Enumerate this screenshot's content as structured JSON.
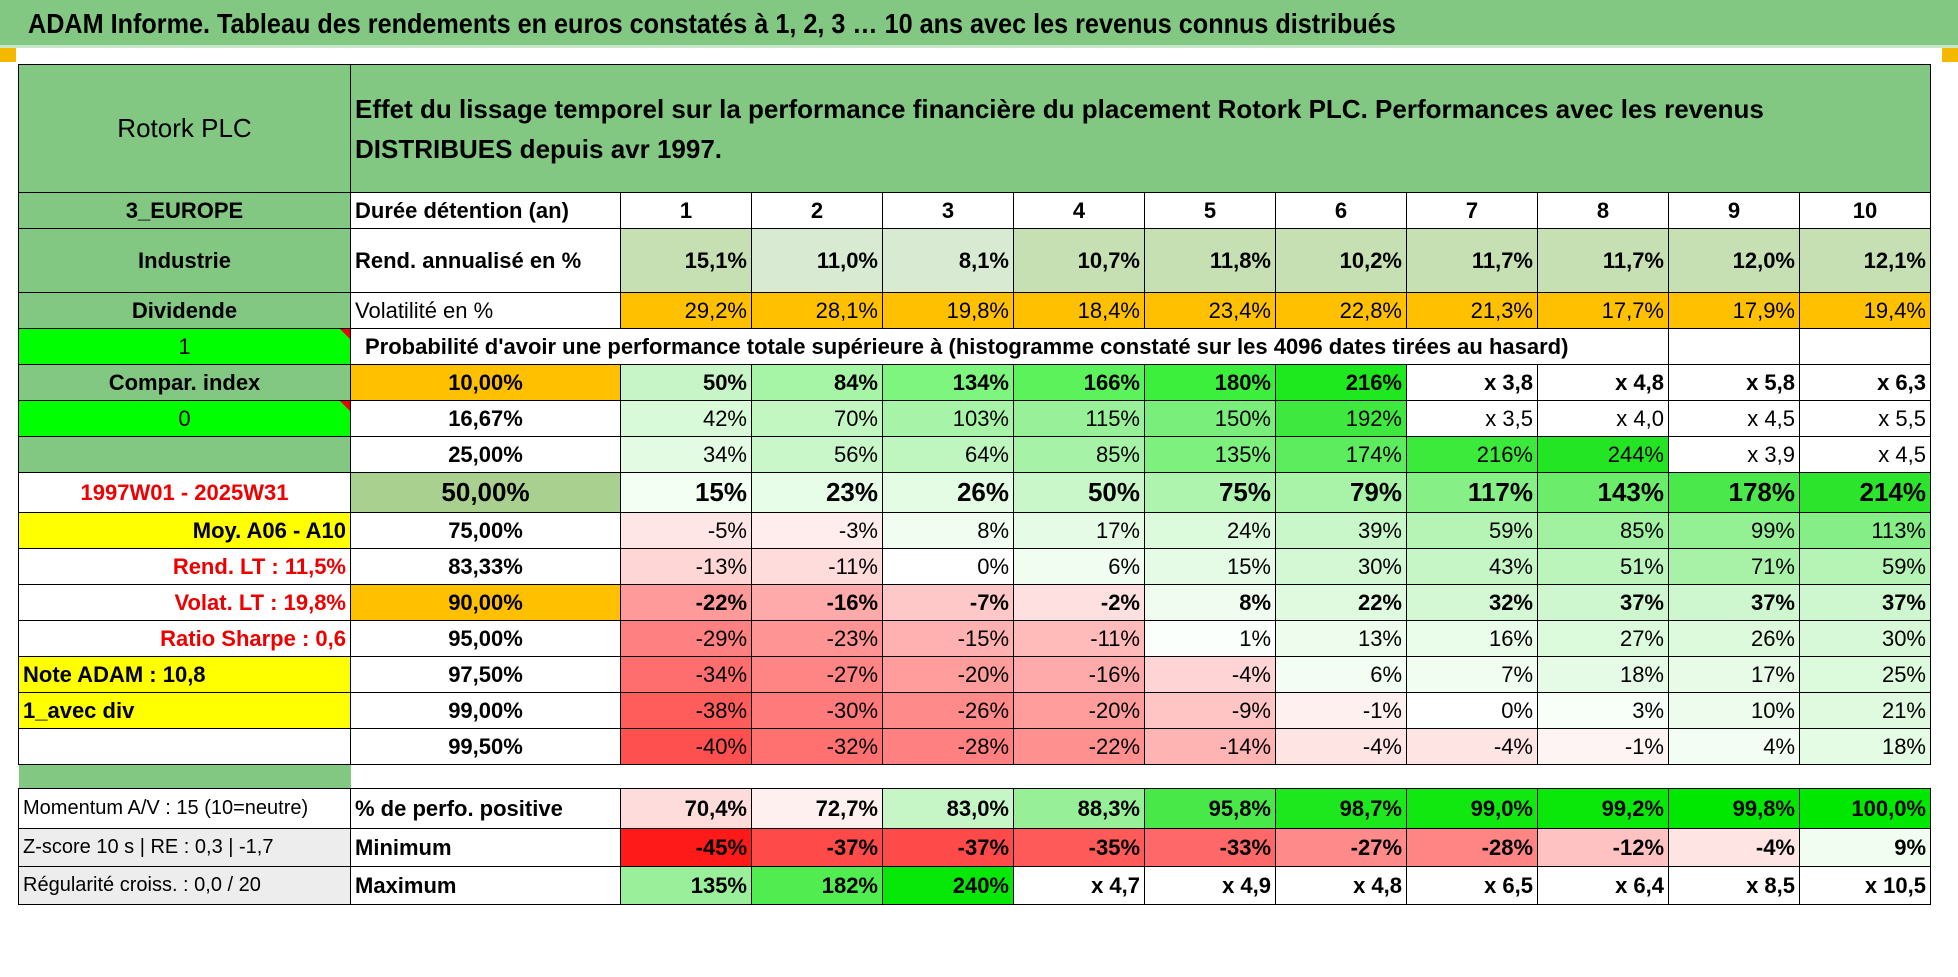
{
  "title": "ADAM Informe. Tableau des rendements en euros constatés à 1, 2, 3 … 10 ans avec les revenus connus distribués",
  "header": {
    "company": "Rotork PLC",
    "description": "Effet du lissage temporel sur la performance financière du placement Rotork PLC. Performances avec les revenus DISTRIBUES depuis avr 1997."
  },
  "left": {
    "region": "3_EUROPE",
    "sector": "Industrie",
    "dividend": "Dividende",
    "one": "1",
    "compar": "Compar. index",
    "zero": "0",
    "blank": "",
    "period": "1997W01 - 2025W31",
    "moy": "Moy. A06 - A10",
    "rend_lt": "Rend. LT :    11,5%",
    "volat_lt": "Volat. LT :    19,8%",
    "sharpe": "Ratio Sharpe :     0,6",
    "note": "Note ADAM : 10,8",
    "avec_div": "1_avec div",
    "momentum": "Momentum A/V : 15 (10=neutre)",
    "zscore": "Z-score 10 s | RE : 0,3 | -1,7",
    "regularite": "Régularité croiss. : 0,0 / 20"
  },
  "rows": {
    "duree_label": "Durée détention (an)",
    "years": [
      "1",
      "2",
      "3",
      "4",
      "5",
      "6",
      "7",
      "8",
      "9",
      "10"
    ],
    "rend_label": "Rend. annualisé en %",
    "rend": [
      "15,1%",
      "11,0%",
      "8,1%",
      "10,7%",
      "11,8%",
      "10,2%",
      "11,7%",
      "11,7%",
      "12,0%",
      "12,1%"
    ],
    "vol_label": "Volatilité en %",
    "vol": [
      "29,2%",
      "28,1%",
      "19,8%",
      "18,4%",
      "23,4%",
      "22,8%",
      "21,3%",
      "17,7%",
      "17,9%",
      "19,4%"
    ],
    "prob_label": "Probabilité d'avoir une performance totale supérieure à (histogramme constaté sur les 4096 dates tirées au hasard)",
    "prob_rows": [
      {
        "pct": "10,00%",
        "vals": [
          "50%",
          "84%",
          "134%",
          "166%",
          "180%",
          "216%",
          "x 3,8",
          "x 4,8",
          "x 5,8",
          "x 6,3"
        ]
      },
      {
        "pct": "16,67%",
        "vals": [
          "42%",
          "70%",
          "103%",
          "115%",
          "150%",
          "192%",
          "x 3,5",
          "x 4,0",
          "x 4,5",
          "x 5,5"
        ]
      },
      {
        "pct": "25,00%",
        "vals": [
          "34%",
          "56%",
          "64%",
          "85%",
          "135%",
          "174%",
          "216%",
          "244%",
          "x 3,9",
          "x 4,5"
        ]
      },
      {
        "pct": "50,00%",
        "vals": [
          "15%",
          "23%",
          "26%",
          "50%",
          "75%",
          "79%",
          "117%",
          "143%",
          "178%",
          "214%"
        ]
      },
      {
        "pct": "75,00%",
        "vals": [
          "-5%",
          "-3%",
          "8%",
          "17%",
          "24%",
          "39%",
          "59%",
          "85%",
          "99%",
          "113%"
        ]
      },
      {
        "pct": "83,33%",
        "vals": [
          "-13%",
          "-11%",
          "0%",
          "6%",
          "15%",
          "30%",
          "43%",
          "51%",
          "71%",
          "59%"
        ]
      },
      {
        "pct": "90,00%",
        "vals": [
          "-22%",
          "-16%",
          "-7%",
          "-2%",
          "8%",
          "22%",
          "32%",
          "37%",
          "37%",
          "37%"
        ]
      },
      {
        "pct": "95,00%",
        "vals": [
          "-29%",
          "-23%",
          "-15%",
          "-11%",
          "1%",
          "13%",
          "16%",
          "27%",
          "26%",
          "30%"
        ]
      },
      {
        "pct": "97,50%",
        "vals": [
          "-34%",
          "-27%",
          "-20%",
          "-16%",
          "-4%",
          "6%",
          "7%",
          "18%",
          "17%",
          "25%"
        ]
      },
      {
        "pct": "99,00%",
        "vals": [
          "-38%",
          "-30%",
          "-26%",
          "-20%",
          "-9%",
          "-1%",
          "0%",
          "3%",
          "10%",
          "21%"
        ]
      },
      {
        "pct": "99,50%",
        "vals": [
          "-40%",
          "-32%",
          "-28%",
          "-22%",
          "-14%",
          "-4%",
          "-4%",
          "-1%",
          "4%",
          "18%"
        ]
      }
    ],
    "positive_label": "% de perfo. positive",
    "positive": [
      "70,4%",
      "72,7%",
      "83,0%",
      "88,3%",
      "95,8%",
      "98,7%",
      "99,0%",
      "99,2%",
      "99,8%",
      "100,0%"
    ],
    "min_label": "Minimum",
    "min": [
      "-45%",
      "-37%",
      "-37%",
      "-35%",
      "-33%",
      "-27%",
      "-28%",
      "-12%",
      "-4%",
      "9%"
    ],
    "max_label": "Maximum",
    "max": [
      "135%",
      "182%",
      "240%",
      "x 4,7",
      "x 4,9",
      "x 4,8",
      "x 6,5",
      "x 6,4",
      "x 8,5",
      "x 10,5"
    ]
  },
  "colors": {
    "header_green": "#82c882",
    "bright_green": "#00ff00",
    "yellow": "#ffff00",
    "orange": "#ffc000",
    "red_text": "#ee0000"
  },
  "cell_colors": {
    "rend": [
      "#c6e0b4",
      "#d9ead3",
      "#d9ead3",
      "#c6e0b4",
      "#c6e0b4",
      "#c6e0b4",
      "#c6e0b4",
      "#c6e0b4",
      "#c6e0b4",
      "#c6e0b4"
    ],
    "prob": [
      [
        "#c8f5c8",
        "#a6f5a6",
        "#7ef57e",
        "#5cf25c",
        "#3cef3c",
        "#1ee81e",
        "#ffffff",
        "#ffffff",
        "#ffffff",
        "#ffffff"
      ],
      [
        "#d8fad8",
        "#c2f7c2",
        "#a7f3a7",
        "#98f198",
        "#7aee7a",
        "#3fe83f",
        "#ffffff",
        "#ffffff",
        "#ffffff",
        "#ffffff"
      ],
      [
        "#e3fbe3",
        "#c9f7c9",
        "#bff5bf",
        "#a6f2a6",
        "#7ef07e",
        "#5dec5d",
        "#3cea3c",
        "#23e523",
        "#ffffff",
        "#ffffff"
      ],
      [
        "#f2fff2",
        "#e8fde8",
        "#e3fce3",
        "#c9f7c9",
        "#aef4ae",
        "#a9f3a9",
        "#86ef86",
        "#6bec6b",
        "#4ae84a",
        "#2de42d"
      ],
      [
        "#ffe6e6",
        "#ffeded",
        "#f2fdf2",
        "#e6fbe6",
        "#dcfadc",
        "#c9f7c9",
        "#b6f4b6",
        "#a0f1a0",
        "#93f093",
        "#86ee86"
      ],
      [
        "#ffd6d6",
        "#ffdcdc",
        "#ffffff",
        "#f2fdf2",
        "#e6fbe6",
        "#d4f8d4",
        "#c6f6c6",
        "#bbf5bb",
        "#a8f2a8",
        "#b6f4b6"
      ],
      [
        "#ff9a9a",
        "#ffaaaa",
        "#ffc8c8",
        "#ffe0e0",
        "#f0fcf0",
        "#e0fae0",
        "#d3f8d3",
        "#cff7cf",
        "#cff7cf",
        "#cff7cf"
      ],
      [
        "#ff8080",
        "#ff9494",
        "#ffb0b0",
        "#ffbaba",
        "#fbfffb",
        "#eefcee",
        "#eafcea",
        "#dcfadc",
        "#ddfadd",
        "#d7f9d7"
      ],
      [
        "#ff6e6e",
        "#ff8484",
        "#ff9c9c",
        "#ffaaaa",
        "#ffd4d4",
        "#f4fdf4",
        "#f2fdf2",
        "#e5fbe5",
        "#e7fbe7",
        "#dcfadc"
      ],
      [
        "#ff5c5c",
        "#ff7a7a",
        "#ff8a8a",
        "#ff9c9c",
        "#ffc4c4",
        "#fff0f0",
        "#ffffff",
        "#f8fef8",
        "#eefcee",
        "#e0fae0"
      ],
      [
        "#ff5050",
        "#ff7070",
        "#ff8080",
        "#ff9090",
        "#ffb4b4",
        "#ffe4e4",
        "#ffe4e4",
        "#fff4f4",
        "#f4fdf4",
        "#e4fbe4"
      ]
    ],
    "positive": [
      "#ffdcdc",
      "#fff0f0",
      "#c6f6c6",
      "#97f097",
      "#49e849",
      "#1de81d",
      "#10e810",
      "#0ae80a",
      "#00e800",
      "#00e800"
    ],
    "min": [
      "#ff1a1a",
      "#ff4a4a",
      "#ff4a4a",
      "#ff5a5a",
      "#ff6868",
      "#ff8a8a",
      "#ff8484",
      "#ffc2c2",
      "#ffe4e4",
      "#f1fdf1"
    ],
    "max": [
      "#9af09a",
      "#50ec50",
      "#08e808",
      "#ffffff",
      "#ffffff",
      "#ffffff",
      "#ffffff",
      "#ffffff",
      "#ffffff",
      "#ffffff"
    ]
  }
}
